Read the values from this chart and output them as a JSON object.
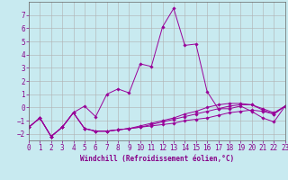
{
  "background_color": "#c8eaf0",
  "grid_color": "#b0b0b0",
  "line_color": "#990099",
  "xlabel": "Windchill (Refroidissement éolien,°C)",
  "xlim": [
    0,
    23
  ],
  "ylim": [
    -2.5,
    8.0
  ],
  "xticks": [
    0,
    1,
    2,
    3,
    4,
    5,
    6,
    7,
    8,
    9,
    10,
    11,
    12,
    13,
    14,
    15,
    16,
    17,
    18,
    19,
    20,
    21,
    22,
    23
  ],
  "yticks": [
    -2,
    -1,
    0,
    1,
    2,
    3,
    4,
    5,
    6,
    7
  ],
  "series_x": [
    0,
    1,
    2,
    3,
    4,
    5,
    6,
    7,
    8,
    9,
    10,
    11,
    12,
    13,
    14,
    15,
    16,
    17,
    18,
    19,
    20,
    21,
    22,
    23
  ],
  "series": [
    [
      -1.5,
      -0.8,
      -2.2,
      -1.5,
      -0.4,
      0.1,
      -0.7,
      1.0,
      1.4,
      1.1,
      3.3,
      3.1,
      6.1,
      7.5,
      4.7,
      4.8,
      1.2,
      -0.1,
      -0.1,
      0.1,
      -0.3,
      -0.8,
      -1.1,
      0.1
    ],
    [
      -1.5,
      -0.8,
      -2.2,
      -1.5,
      -0.4,
      -1.6,
      -1.8,
      -1.8,
      -1.7,
      -1.6,
      -1.5,
      -1.4,
      -1.3,
      -1.2,
      -1.0,
      -0.9,
      -0.8,
      -0.6,
      -0.4,
      -0.3,
      -0.2,
      -0.3,
      -0.5,
      0.1
    ],
    [
      -1.5,
      -0.8,
      -2.2,
      -1.5,
      -0.4,
      -1.6,
      -1.8,
      -1.8,
      -1.7,
      -1.6,
      -1.5,
      -1.3,
      -1.1,
      -0.9,
      -0.7,
      -0.5,
      -0.3,
      -0.1,
      0.1,
      0.2,
      0.2,
      -0.1,
      -0.4,
      0.1
    ],
    [
      -1.5,
      -0.8,
      -2.2,
      -1.5,
      -0.4,
      -1.6,
      -1.8,
      -1.8,
      -1.7,
      -1.6,
      -1.4,
      -1.2,
      -1.0,
      -0.8,
      -0.5,
      -0.3,
      0.0,
      0.2,
      0.3,
      0.3,
      0.2,
      -0.2,
      -0.5,
      0.1
    ]
  ],
  "tick_fontsize": 5.5,
  "xlabel_fontsize": 5.5
}
